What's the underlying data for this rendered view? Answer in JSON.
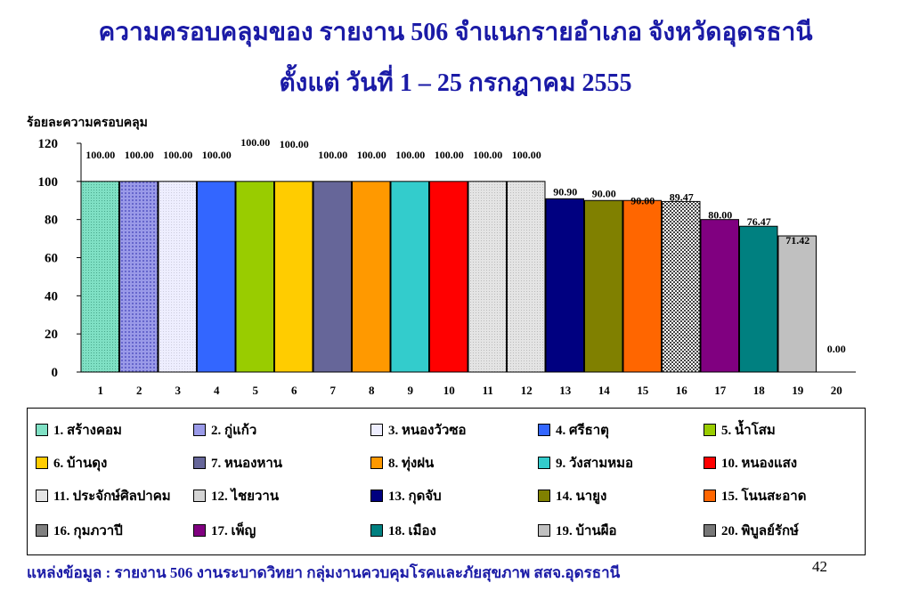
{
  "title_line1": "ความครอบคลุมของ รายงาน 506  จำแนกรายอำเภอ จังหวัดอุดรธานี",
  "title_line2": "ตั้งแต่ วันที่  1 – 25 กรกฎาคม 2555",
  "source": "แหล่งข้อมูล : รายงาน 506 งานระบาดวิทยา กลุ่มงานควบคุมโรคและภัยสุขภาพ  สสจ.อุดรธานี",
  "page_number": "42",
  "chart_data": {
    "type": "bar",
    "ylabel": "ร้อยละความครอบคลุม",
    "ylim": [
      0,
      120
    ],
    "yticks": [
      "0",
      "20",
      "40",
      "60",
      "80",
      "100",
      "120"
    ],
    "categories": [
      "1",
      "2",
      "3",
      "4",
      "5",
      "6",
      "7",
      "8",
      "9",
      "10",
      "11",
      "12",
      "13",
      "14",
      "15",
      "16",
      "17",
      "18",
      "19",
      "20"
    ],
    "values": [
      100.0,
      100.0,
      100.0,
      100.0,
      100.0,
      100.0,
      100.0,
      100.0,
      100.0,
      100.0,
      100.0,
      100.0,
      90.9,
      90.0,
      90.0,
      89.47,
      80.0,
      76.47,
      71.42,
      0.0
    ],
    "value_labels": [
      "100.00",
      "100.00",
      "100.00",
      "100.00",
      "100.00",
      "100.00",
      "100.00",
      "100.00",
      "100.00",
      "100.00",
      "100.00",
      "100.00",
      "90.90",
      "90.00",
      "90.00",
      "89.47",
      "80.00",
      "76.47",
      "71.42",
      "0.00"
    ],
    "legend": [
      {
        "label": "1. สร้างคอม",
        "color": "#7fe0c4"
      },
      {
        "label": "2. กู่แก้ว",
        "color": "#9a9ae8"
      },
      {
        "label": "3. หนองวัวซอ",
        "color": "#eeeeff"
      },
      {
        "label": "4. ศรีธาตุ",
        "color": "#3366ff"
      },
      {
        "label": "5. น้ำโสม",
        "color": "#99cc00"
      },
      {
        "label": "6. บ้านดุง",
        "color": "#ffcc00"
      },
      {
        "label": "7. หนองหาน",
        "color": "#666699"
      },
      {
        "label": "8. ทุ่งฝน",
        "color": "#ff9900"
      },
      {
        "label": "9. วังสามหมอ",
        "color": "#33cccc"
      },
      {
        "label": "10. หนองแสง",
        "color": "#ff0000"
      },
      {
        "label": "11. ประจักษ์ศิลปาคม",
        "color": "#e4e4e4"
      },
      {
        "label": "12. ไชยวาน",
        "color": "#d4d4d4"
      },
      {
        "label": "13. กุดจับ",
        "color": "#000080"
      },
      {
        "label": "14. นายูง",
        "color": "#808000"
      },
      {
        "label": "15. โนนสะอาด",
        "color": "#ff6600"
      },
      {
        "label": "16. กุมภวาปี",
        "color": "#808080"
      },
      {
        "label": "17. เพ็ญ",
        "color": "#800080"
      },
      {
        "label": "18. เมือง",
        "color": "#008080"
      },
      {
        "label": "19. บ้านผือ",
        "color": "#c0c0c0"
      },
      {
        "label": "20. พิบูลย์รักษ์",
        "color": "#777777"
      }
    ]
  }
}
